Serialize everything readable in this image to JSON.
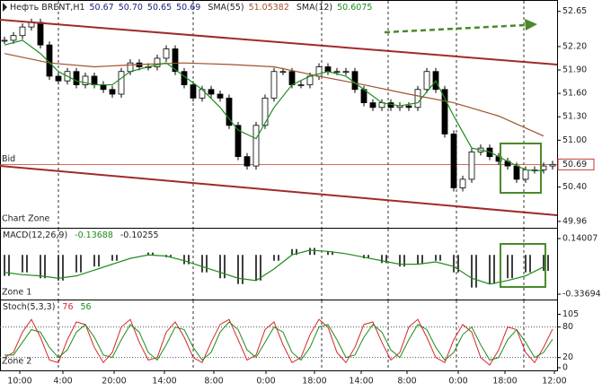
{
  "x_axis": {
    "xlim": [
      -0.5,
      61.5
    ],
    "xticks": [
      {
        "value": 1.7,
        "label": "10:00"
      },
      {
        "value": 6.5,
        "label": "4:00"
      },
      {
        "value": 12.2,
        "label": "20:00"
      },
      {
        "value": 17.8,
        "label": "14:00"
      },
      {
        "value": 23.3,
        "label": "8:00"
      },
      {
        "value": 29.1,
        "label": "0:00"
      },
      {
        "value": 34.5,
        "label": "18:00"
      },
      {
        "value": 39.7,
        "label": "14:00"
      },
      {
        "value": 44.8,
        "label": "8:00"
      },
      {
        "value": 50.5,
        "label": "0:00"
      },
      {
        "value": 55.7,
        "label": "18:00"
      },
      {
        "value": 61.2,
        "label": "12:00"
      }
    ]
  },
  "chart_data": [
    {
      "type": "candlestick",
      "title": "Нефть BRENT,H1",
      "header_values": [
        "50.67",
        "50.70",
        "50.65",
        "50.69"
      ],
      "zone_label": "Chart Zone",
      "x": [
        0,
        1,
        2,
        3,
        4,
        5,
        6,
        7,
        8,
        9,
        10,
        11,
        12,
        13,
        14,
        15,
        16,
        17,
        18,
        19,
        20,
        21,
        22,
        23,
        24,
        25,
        26,
        27,
        28,
        29,
        30,
        31,
        32,
        33,
        34,
        35,
        36,
        37,
        38,
        39,
        40,
        41,
        42,
        43,
        44,
        45,
        46,
        47,
        48,
        49,
        50,
        51,
        52,
        53,
        54,
        55,
        56,
        57,
        58,
        59,
        60,
        61
      ],
      "values": [
        52.28,
        52.34,
        52.45,
        52.51,
        52.22,
        51.82,
        51.76,
        51.88,
        51.71,
        51.82,
        51.71,
        51.65,
        51.59,
        51.88,
        51.99,
        51.94,
        51.94,
        52.05,
        52.17,
        51.88,
        51.71,
        51.54,
        51.65,
        51.59,
        51.54,
        51.19,
        50.79,
        50.67,
        51.19,
        51.54,
        51.88,
        51.88,
        51.71,
        51.71,
        51.82,
        51.94,
        51.88,
        51.88,
        51.88,
        51.65,
        51.48,
        51.42,
        51.48,
        51.42,
        51.44,
        51.42,
        51.65,
        51.88,
        51.65,
        51.08,
        50.39,
        50.5,
        50.85,
        50.9,
        50.79,
        50.73,
        50.67,
        50.5,
        50.62,
        50.62,
        50.67,
        50.69
      ],
      "series": [
        {
          "name": "SMA(55)",
          "value_label": "51.05382",
          "color": "#a0522d",
          "x": [
            0,
            5,
            10,
            15,
            20,
            25,
            30,
            35,
            40,
            45,
            50,
            55,
            60
          ],
          "values": [
            52.11,
            51.99,
            51.94,
            51.97,
            51.99,
            51.97,
            51.94,
            51.82,
            51.71,
            51.59,
            51.48,
            51.31,
            51.05382
          ]
        },
        {
          "name": "SMA(12)",
          "value_label": "50.6075",
          "color": "#1e8c1e",
          "x": [
            0,
            2,
            4,
            6,
            8,
            10,
            12,
            14,
            16,
            18,
            20,
            22,
            24,
            26,
            28,
            30,
            32,
            34,
            36,
            38,
            40,
            42,
            44,
            46,
            48,
            50,
            52,
            54,
            56,
            58,
            60
          ],
          "values": [
            52.22,
            52.28,
            52.11,
            51.88,
            51.76,
            51.71,
            51.71,
            51.88,
            51.94,
            51.99,
            51.82,
            51.65,
            51.42,
            51.13,
            51.02,
            51.42,
            51.71,
            51.82,
            51.88,
            51.82,
            51.65,
            51.48,
            51.44,
            51.48,
            51.76,
            51.31,
            50.9,
            50.85,
            50.73,
            50.62,
            50.6075
          ]
        }
      ],
      "bid": {
        "label": "Bid",
        "value": 50.69,
        "color": "#c0392b"
      },
      "ylim": [
        49.89,
        52.75
      ],
      "yticks": [
        52.65,
        {
          "value": 52.2,
          "label": "52.20"
        },
        {
          "value": 51.9,
          "label": "51.90"
        },
        {
          "value": 51.6,
          "label": "51.60"
        },
        {
          "value": 51.3,
          "label": "51.30"
        },
        {
          "value": 51.0,
          "label": "51.00"
        },
        {
          "value": 50.7,
          "label": "50.70"
        },
        {
          "value": 50.4,
          "label": "50.40"
        },
        49.96
      ]
    },
    {
      "type": "macd",
      "title": "MACD(12,26,9)",
      "zone_label": "Zone 1",
      "histogram": {
        "value_label": -0.13688,
        "color": "#000000",
        "x": [
          0,
          2,
          4,
          6,
          8,
          10,
          12,
          14,
          16,
          18,
          20,
          22,
          24,
          26,
          28,
          30,
          32,
          34,
          36,
          38,
          40,
          42,
          44,
          46,
          48,
          50,
          52,
          54,
          56,
          58,
          60
        ],
        "values": [
          -0.18,
          -0.15,
          -0.2,
          -0.22,
          -0.15,
          -0.1,
          -0.05,
          0.0,
          0.02,
          -0.02,
          -0.08,
          -0.15,
          -0.2,
          -0.25,
          -0.22,
          -0.05,
          0.05,
          0.06,
          0.03,
          0.0,
          -0.03,
          -0.07,
          -0.1,
          -0.08,
          -0.05,
          -0.15,
          -0.28,
          -0.25,
          -0.2,
          -0.15,
          -0.13688
        ]
      },
      "signal": {
        "value_label": -0.10255,
        "color": "#1e8c1e",
        "x": [
          0,
          2,
          4,
          6,
          8,
          10,
          12,
          14,
          16,
          18,
          20,
          22,
          24,
          26,
          28,
          30,
          32,
          34,
          36,
          38,
          40,
          42,
          44,
          46,
          48,
          50,
          52,
          54,
          56,
          58,
          60
        ],
        "values": [
          -0.15,
          -0.17,
          -0.18,
          -0.2,
          -0.18,
          -0.13,
          -0.08,
          -0.03,
          0.0,
          -0.01,
          -0.05,
          -0.1,
          -0.15,
          -0.2,
          -0.22,
          -0.12,
          0.0,
          0.04,
          0.03,
          0.01,
          -0.02,
          -0.05,
          -0.08,
          -0.08,
          -0.06,
          -0.1,
          -0.2,
          -0.25,
          -0.22,
          -0.18,
          -0.10255
        ]
      },
      "ylim": [
        -0.375,
        0.217
      ],
      "yticks": [
        0.14007,
        -0.33694
      ]
    },
    {
      "type": "stochastic",
      "title": "Stoch(5,3,3)",
      "zone_label": "Zone 2",
      "series": [
        {
          "value_label": 76,
          "color": "#d62728",
          "x": [
            0,
            1,
            2,
            3,
            4,
            5,
            6,
            7,
            8,
            9,
            10,
            11,
            12,
            13,
            14,
            15,
            16,
            17,
            18,
            19,
            20,
            21,
            22,
            23,
            24,
            25,
            26,
            27,
            28,
            29,
            30,
            31,
            32,
            33,
            34,
            35,
            36,
            37,
            38,
            39,
            40,
            41,
            42,
            43,
            44,
            45,
            46,
            47,
            48,
            49,
            50,
            51,
            52,
            53,
            54,
            55,
            56,
            57,
            58,
            59,
            60,
            61
          ],
          "values": [
            20,
            30,
            70,
            95,
            60,
            15,
            10,
            55,
            90,
            85,
            40,
            10,
            30,
            80,
            95,
            50,
            15,
            20,
            70,
            90,
            60,
            20,
            10,
            50,
            85,
            95,
            55,
            15,
            25,
            75,
            90,
            45,
            10,
            20,
            65,
            95,
            80,
            30,
            10,
            40,
            85,
            90,
            50,
            15,
            30,
            80,
            95,
            60,
            20,
            10,
            55,
            85,
            70,
            20,
            5,
            35,
            80,
            75,
            30,
            10,
            40,
            76
          ]
        },
        {
          "value_label": 56,
          "color": "#1e8c1e",
          "x": [
            0,
            1,
            2,
            3,
            4,
            5,
            6,
            7,
            8,
            9,
            10,
            11,
            12,
            13,
            14,
            15,
            16,
            17,
            18,
            19,
            20,
            21,
            22,
            23,
            24,
            25,
            26,
            27,
            28,
            29,
            30,
            31,
            32,
            33,
            34,
            35,
            36,
            37,
            38,
            39,
            40,
            41,
            42,
            43,
            44,
            45,
            46,
            47,
            48,
            49,
            50,
            51,
            52,
            53,
            54,
            55,
            56,
            57,
            58,
            59,
            60,
            61
          ],
          "values": [
            25,
            25,
            50,
            75,
            70,
            40,
            20,
            35,
            70,
            85,
            60,
            25,
            20,
            55,
            85,
            70,
            30,
            15,
            45,
            80,
            75,
            40,
            15,
            30,
            70,
            90,
            75,
            35,
            20,
            50,
            80,
            70,
            30,
            15,
            40,
            80,
            85,
            55,
            20,
            25,
            60,
            85,
            70,
            35,
            20,
            55,
            85,
            75,
            40,
            15,
            30,
            65,
            80,
            45,
            15,
            20,
            55,
            75,
            50,
            20,
            30,
            56
          ]
        }
      ],
      "ylim": [
        0,
        120
      ],
      "yticks": [
        105,
        80,
        20,
        0
      ],
      "levels": [
        80,
        20
      ]
    }
  ]
}
